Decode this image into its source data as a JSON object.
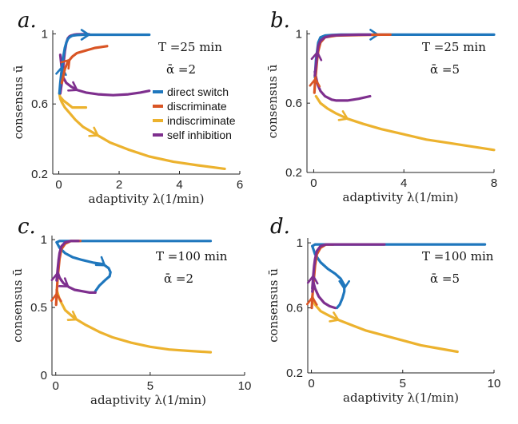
{
  "colors": {
    "direct switch": "#1f77bd",
    "discriminate": "#d95525",
    "indiscriminate": "#ecb22e",
    "self inhibition": "#7e2f8e"
  },
  "legend": {
    "items": [
      "direct switch",
      "discriminate",
      "indiscriminate",
      "self inhibition"
    ],
    "placement": "inside panel a, right"
  },
  "chart_data": [
    {
      "type": "line",
      "panel_label": "a.",
      "param_T": "T =25 min",
      "param_alpha": "ᾱ =2",
      "xlabel": "adaptivity λ(1/min)",
      "ylabel": "consensus ū",
      "xlim": [
        -0.2,
        6
      ],
      "ylim": [
        0.2,
        1.02
      ],
      "xticks": [
        0,
        2,
        4,
        6
      ],
      "yticks": [
        0.2,
        0.6,
        1
      ],
      "series": [
        {
          "name": "indiscriminate",
          "x": [
            0.02,
            0.05,
            0.1,
            0.2,
            0.35,
            0.55,
            0.8,
            1.2,
            1.7,
            2.3,
            3.0,
            3.8,
            4.6,
            5.5
          ],
          "y": [
            0.66,
            0.63,
            0.61,
            0.58,
            0.55,
            0.51,
            0.47,
            0.43,
            0.38,
            0.34,
            0.3,
            0.27,
            0.25,
            0.23
          ],
          "arrows": [
            0.3
          ]
        },
        {
          "name": "indiscriminate",
          "x": [
            0.05,
            0.15,
            0.3,
            0.45,
            0.6,
            0.75,
            0.9
          ],
          "y": [
            0.64,
            0.62,
            0.6,
            0.58,
            0.58,
            0.58,
            0.58
          ]
        },
        {
          "name": "self inhibition",
          "x": [
            0.05,
            0.1,
            0.15,
            0.2,
            0.25,
            0.3,
            0.35,
            0.4,
            0.5,
            0.6,
            0.8,
            1.0
          ],
          "y": [
            0.66,
            0.72,
            0.82,
            0.9,
            0.95,
            0.975,
            0.985,
            0.99,
            0.995,
            0.997,
            0.998,
            0.998
          ]
        },
        {
          "name": "self inhibition",
          "x": [
            0.05,
            0.1,
            0.15,
            0.25,
            0.4,
            0.6,
            0.9,
            1.3,
            1.8,
            2.3,
            2.7,
            3.0
          ],
          "y": [
            0.88,
            0.8,
            0.75,
            0.72,
            0.7,
            0.68,
            0.665,
            0.655,
            0.65,
            0.655,
            0.665,
            0.675
          ],
          "arrows": [
            0.35
          ]
        },
        {
          "name": "direct switch",
          "x": [
            0.02,
            0.05,
            0.1,
            0.15,
            0.2,
            0.25,
            0.3,
            0.35,
            0.45,
            0.6,
            0.8,
            1.2,
            1.8,
            2.4,
            3.0
          ],
          "y": [
            0.66,
            0.72,
            0.8,
            0.87,
            0.92,
            0.95,
            0.97,
            0.98,
            0.99,
            0.993,
            0.995,
            0.995,
            0.995,
            0.995,
            0.995
          ],
          "arrows": [
            0.18,
            0.55
          ]
        },
        {
          "name": "discriminate",
          "x": [
            0.1,
            0.15,
            0.2,
            0.3,
            0.45,
            0.6,
            0.8,
            1.0,
            1.2,
            1.4,
            1.6
          ],
          "y": [
            0.72,
            0.76,
            0.8,
            0.84,
            0.87,
            0.89,
            0.9,
            0.91,
            0.92,
            0.925,
            0.93
          ],
          "arrows": [
            0.35
          ]
        }
      ]
    },
    {
      "type": "line",
      "panel_label": "b.",
      "param_T": "T =25 min",
      "param_alpha": "ᾱ =5",
      "xlabel": "adaptivity λ(1/min)",
      "ylabel": "consensus ū",
      "xlim": [
        -0.3,
        8
      ],
      "ylim": [
        0.2,
        1.02
      ],
      "xticks": [
        0,
        4,
        8
      ],
      "yticks": [
        0.2,
        0.6,
        1
      ],
      "series": [
        {
          "name": "indiscriminate",
          "x": [
            0.1,
            0.3,
            0.6,
            1.0,
            1.5,
            2.2,
            3.0,
            4.0,
            5.0,
            6.0,
            7.0,
            8.0
          ],
          "y": [
            0.64,
            0.6,
            0.57,
            0.54,
            0.51,
            0.48,
            0.45,
            0.42,
            0.39,
            0.37,
            0.35,
            0.33
          ],
          "arrows": [
            0.2
          ]
        },
        {
          "name": "self inhibition",
          "x": [
            0.05,
            0.1,
            0.15,
            0.2,
            0.3,
            0.5,
            0.8,
            1.0,
            1.5,
            2.0,
            2.5
          ],
          "y": [
            0.78,
            0.75,
            0.72,
            0.7,
            0.67,
            0.64,
            0.62,
            0.615,
            0.615,
            0.625,
            0.64
          ]
        },
        {
          "name": "direct switch",
          "x": [
            0.05,
            0.1,
            0.2,
            0.3,
            0.5,
            0.8,
            1.2,
            2,
            3,
            4,
            5,
            6,
            7,
            8
          ],
          "y": [
            0.75,
            0.85,
            0.95,
            0.98,
            0.99,
            0.993,
            0.995,
            0.995,
            0.995,
            0.995,
            0.995,
            0.995,
            0.995,
            0.995
          ],
          "arrows": [
            0.45
          ]
        },
        {
          "name": "discriminate",
          "x": [
            0.03,
            0.06,
            0.1,
            0.15,
            0.2,
            0.3,
            0.5,
            1,
            2,
            3,
            3.4
          ],
          "y": [
            0.66,
            0.72,
            0.78,
            0.85,
            0.9,
            0.95,
            0.98,
            0.99,
            0.993,
            0.995,
            0.995
          ],
          "arrows": [
            0.1
          ]
        },
        {
          "name": "self inhibition",
          "x": [
            0.05,
            0.1,
            0.15,
            0.2,
            0.3,
            0.5,
            0.8,
            1.2,
            2,
            2.5
          ],
          "y": [
            0.76,
            0.82,
            0.88,
            0.93,
            0.96,
            0.98,
            0.99,
            0.993,
            0.995,
            0.995
          ],
          "arrows": [
            0.25
          ]
        }
      ]
    },
    {
      "type": "line",
      "panel_label": "c.",
      "param_T": "T =100 min",
      "param_alpha": "ᾱ =2",
      "xlabel": "adaptivity λ(1/min)",
      "ylabel": "consensus ū",
      "xlim": [
        -0.2,
        10
      ],
      "ylim": [
        0,
        1.03
      ],
      "xticks": [
        0,
        5,
        10
      ],
      "yticks": [
        0,
        0.5,
        1
      ],
      "series": [
        {
          "name": "indiscriminate",
          "x": [
            0.05,
            0.2,
            0.5,
            1.0,
            1.6,
            2.3,
            3.0,
            4.0,
            5.0,
            6.0,
            7.0,
            8.2
          ],
          "y": [
            0.63,
            0.56,
            0.48,
            0.42,
            0.37,
            0.32,
            0.28,
            0.24,
            0.21,
            0.19,
            0.18,
            0.17
          ],
          "arrows": [
            0.2
          ]
        },
        {
          "name": "direct switch",
          "x": [
            0.05,
            0.2,
            0.5,
            1.0,
            2,
            3,
            4,
            5,
            6,
            7,
            8,
            8.2
          ],
          "y": [
            0.98,
            0.99,
            0.99,
            0.99,
            0.99,
            0.99,
            0.99,
            0.99,
            0.99,
            0.99,
            0.99,
            0.99
          ]
        },
        {
          "name": "direct switch",
          "x": [
            0.05,
            0.2,
            0.5,
            0.9,
            1.4,
            2.0,
            2.5,
            2.8,
            2.9,
            2.85,
            2.6,
            2.3,
            2.1
          ],
          "y": [
            0.98,
            0.94,
            0.9,
            0.87,
            0.85,
            0.83,
            0.82,
            0.79,
            0.76,
            0.73,
            0.7,
            0.66,
            0.62
          ],
          "arrows": [
            0.6
          ]
        },
        {
          "name": "discriminate",
          "x": [
            0.02,
            0.05,
            0.1,
            0.2,
            0.3,
            0.5,
            0.8,
            1.0,
            1.3
          ],
          "y": [
            0.52,
            0.6,
            0.72,
            0.86,
            0.93,
            0.97,
            0.99,
            0.99,
            0.99
          ],
          "arrows": [
            0.12
          ]
        },
        {
          "name": "self inhibition",
          "x": [
            0.05,
            0.1,
            0.2,
            0.4,
            0.7,
            1.0,
            1.4,
            1.8,
            2.1
          ],
          "y": [
            0.7,
            0.76,
            0.72,
            0.68,
            0.65,
            0.63,
            0.62,
            0.61,
            0.61
          ],
          "arrows": [
            0.45
          ]
        },
        {
          "name": "self inhibition",
          "x": [
            0.05,
            0.1,
            0.15,
            0.2,
            0.3,
            0.5,
            0.8,
            1.2
          ],
          "y": [
            0.7,
            0.78,
            0.85,
            0.9,
            0.95,
            0.98,
            0.99,
            0.99
          ],
          "arrows": [
            0.1
          ]
        }
      ]
    },
    {
      "type": "line",
      "panel_label": "d.",
      "param_T": "T =100 min",
      "param_alpha": "ᾱ =5",
      "xlabel": "adaptivity λ(1/min)",
      "ylabel": "consensus ū",
      "xlim": [
        -0.2,
        10
      ],
      "ylim": [
        0.2,
        1.03
      ],
      "xticks": [
        0,
        5,
        10
      ],
      "yticks": [
        0.2,
        0.6,
        1
      ],
      "series": [
        {
          "name": "indiscriminate",
          "x": [
            0.05,
            0.2,
            0.5,
            1.0,
            1.6,
            2.3,
            3.0,
            4.0,
            5.0,
            6.0,
            7.0,
            8.0
          ],
          "y": [
            0.67,
            0.62,
            0.58,
            0.55,
            0.52,
            0.49,
            0.46,
            0.43,
            0.4,
            0.37,
            0.35,
            0.33
          ],
          "arrows": [
            0.22
          ]
        },
        {
          "name": "direct switch",
          "x": [
            0.05,
            0.2,
            0.5,
            1.0,
            2,
            3,
            4,
            5,
            6,
            7,
            8,
            9.5
          ],
          "y": [
            0.98,
            0.99,
            0.99,
            0.99,
            0.99,
            0.99,
            0.99,
            0.99,
            0.99,
            0.99,
            0.99,
            0.99
          ]
        },
        {
          "name": "direct switch",
          "x": [
            0.05,
            0.2,
            0.5,
            0.9,
            1.3,
            1.6,
            1.8,
            1.8,
            1.7,
            1.55,
            1.4
          ],
          "y": [
            0.98,
            0.93,
            0.88,
            0.84,
            0.81,
            0.78,
            0.74,
            0.7,
            0.66,
            0.62,
            0.6
          ],
          "arrows": [
            0.7
          ]
        },
        {
          "name": "discriminate",
          "x": [
            0.02,
            0.05,
            0.1,
            0.2,
            0.3,
            0.5,
            0.8,
            1.2
          ],
          "y": [
            0.6,
            0.66,
            0.74,
            0.86,
            0.93,
            0.97,
            0.99,
            0.99
          ],
          "arrows": [
            0.12
          ]
        },
        {
          "name": "self inhibition",
          "x": [
            0.05,
            0.1,
            0.2,
            0.4,
            0.7,
            1.0,
            1.3
          ],
          "y": [
            0.7,
            0.76,
            0.72,
            0.67,
            0.63,
            0.61,
            0.6
          ]
        },
        {
          "name": "self inhibition",
          "x": [
            0.05,
            0.1,
            0.15,
            0.2,
            0.3,
            0.5,
            0.8,
            1.5,
            3,
            4
          ],
          "y": [
            0.72,
            0.8,
            0.86,
            0.9,
            0.95,
            0.98,
            0.99,
            0.99,
            0.99,
            0.99
          ],
          "arrows": [
            0.1
          ]
        }
      ]
    }
  ]
}
